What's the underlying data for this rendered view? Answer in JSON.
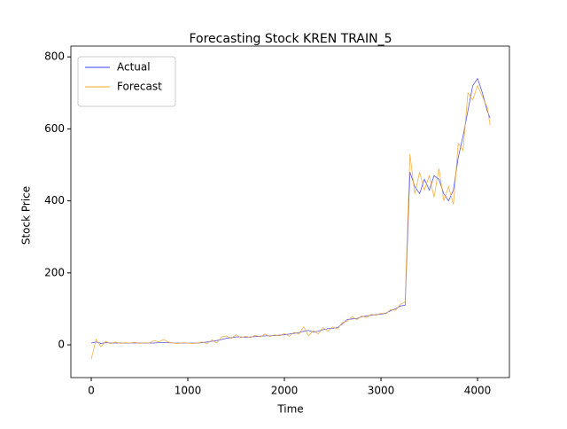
{
  "chart_data": {
    "type": "line",
    "title": "Forecasting Stock KREN TRAIN_5",
    "xlabel": "Time",
    "ylabel": "Stock Price",
    "x": [
      0,
      50,
      100,
      150,
      200,
      250,
      300,
      350,
      400,
      450,
      500,
      550,
      600,
      650,
      700,
      750,
      800,
      850,
      900,
      950,
      1000,
      1050,
      1100,
      1150,
      1200,
      1250,
      1300,
      1350,
      1400,
      1450,
      1500,
      1550,
      1600,
      1650,
      1700,
      1750,
      1800,
      1850,
      1900,
      1950,
      2000,
      2050,
      2100,
      2150,
      2200,
      2250,
      2300,
      2350,
      2400,
      2450,
      2500,
      2550,
      2600,
      2650,
      2700,
      2750,
      2800,
      2850,
      2900,
      2950,
      3000,
      3050,
      3100,
      3150,
      3200,
      3250,
      3300,
      3350,
      3400,
      3450,
      3500,
      3550,
      3600,
      3650,
      3700,
      3750,
      3800,
      3850,
      3900,
      3950,
      4000,
      4050,
      4100,
      4130
    ],
    "series": [
      {
        "name": "Actual",
        "color": "#3b3bea",
        "values": [
          5,
          8,
          4,
          6,
          5,
          5,
          5,
          5,
          5,
          5,
          5,
          5,
          5,
          5,
          6,
          6,
          6,
          5,
          5,
          5,
          5,
          5,
          5,
          6,
          8,
          10,
          12,
          15,
          18,
          20,
          22,
          22,
          21,
          22,
          23,
          24,
          25,
          25,
          26,
          27,
          28,
          30,
          32,
          34,
          38,
          40,
          35,
          38,
          42,
          45,
          46,
          48,
          58,
          70,
          72,
          73,
          78,
          80,
          82,
          84,
          85,
          88,
          95,
          100,
          108,
          110,
          480,
          440,
          420,
          460,
          430,
          470,
          460,
          420,
          400,
          430,
          520,
          580,
          650,
          720,
          740,
          700,
          650,
          630
        ]
      },
      {
        "name": "Forecast",
        "color": "#f5a623",
        "values": [
          -40,
          15,
          -5,
          10,
          3,
          8,
          4,
          6,
          5,
          7,
          4,
          6,
          5,
          12,
          8,
          15,
          7,
          5,
          4,
          6,
          5,
          4,
          5,
          8,
          3,
          14,
          5,
          22,
          25,
          18,
          28,
          20,
          24,
          20,
          27,
          22,
          30,
          23,
          28,
          25,
          32,
          24,
          35,
          30,
          50,
          25,
          40,
          30,
          48,
          38,
          50,
          44,
          62,
          65,
          78,
          70,
          80,
          76,
          85,
          82,
          88,
          86,
          98,
          96,
          112,
          120,
          530,
          420,
          480,
          430,
          470,
          410,
          490,
          400,
          440,
          390,
          560,
          540,
          700,
          680,
          720,
          690,
          660,
          610
        ]
      }
    ],
    "xlim": [
      -211,
      4330
    ],
    "ylim": [
      -91,
      830
    ],
    "xticks": [
      0,
      1000,
      2000,
      3000,
      4000
    ],
    "yticks": [
      0,
      200,
      400,
      600,
      800
    ],
    "legend": "upper left",
    "grid": false
  }
}
